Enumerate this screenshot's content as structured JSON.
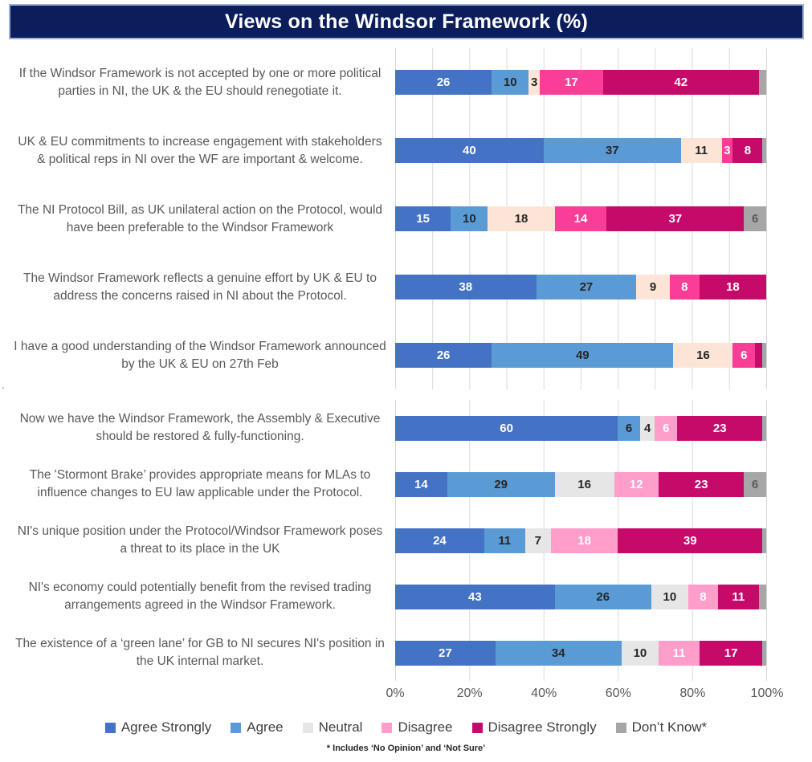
{
  "title": "Views on the Windsor Framework (%)",
  "footnote": "* Includes ‘No Opinion’ and ‘Not Sure’",
  "stray_mark": ".",
  "colors": {
    "title_bg": "#0b1d5b",
    "title_border": "#9fb1d9",
    "gridline": "#d9d9d9",
    "axis_text": "#595959",
    "category_text": "#595959",
    "legend_text": "#404040"
  },
  "chart_data": {
    "type": "bar",
    "orientation": "horizontal_stacked",
    "title": "Views on the Windsor Framework (%)",
    "xlim": [
      0,
      100
    ],
    "x_tick_labels": [
      "0%",
      "20%",
      "40%",
      "60%",
      "80%",
      "100%"
    ],
    "grid": true,
    "label_min_show": 3,
    "series_names": [
      "Agree Strongly",
      "Agree",
      "Neutral",
      "Disagree",
      "Disagree Strongly",
      "Don’t Know*"
    ],
    "charts": [
      {
        "name": "upper",
        "gridline_step_pct": 10,
        "colors": [
          "#4472c4",
          "#5b9bd5",
          "#fce4d6",
          "#fa3d96",
          "#c60a6a",
          "#a6a6a6"
        ],
        "text_colors": [
          "#ffffff",
          "#262626",
          "#262626",
          "#ffffff",
          "#ffffff",
          "#595959"
        ],
        "rows": [
          {
            "label": "If the Windsor Framework is not accepted by one or more political parties in NI, the UK & the EU should renegotiate it.",
            "values": [
              26,
              10,
              3,
              17,
              42,
              2
            ]
          },
          {
            "label": "UK & EU commitments to increase engagement with stakeholders & political reps in NI over the WF are important & welcome.",
            "values": [
              40,
              37,
              11,
              3,
              8,
              1
            ]
          },
          {
            "label": "The NI Protocol Bill, as UK unilateral action on the Protocol, would have been preferable to the Windsor Framework",
            "values": [
              15,
              10,
              18,
              14,
              37,
              6
            ]
          },
          {
            "label": "The Windsor Framework reflects a genuine effort by UK & EU to address the concerns raised in NI about the Protocol.",
            "values": [
              38,
              27,
              9,
              8,
              18,
              0
            ]
          },
          {
            "label": "I have a good understanding of the Windsor Framework announced by the UK & EU on 27th Feb",
            "values": [
              26,
              49,
              16,
              6,
              2,
              1
            ]
          }
        ]
      },
      {
        "name": "lower",
        "gridline_step_pct": 20,
        "colors": [
          "#4472c4",
          "#5b9bd5",
          "#e7e6e6",
          "#ff9dcb",
          "#c60a6a",
          "#a6a6a6"
        ],
        "text_colors": [
          "#ffffff",
          "#262626",
          "#262626",
          "#ffffff",
          "#ffffff",
          "#595959"
        ],
        "rows": [
          {
            "label": "Now we have the Windsor Framework, the Assembly & Executive should be restored & fully-functioning.",
            "values": [
              60,
              6,
              4,
              6,
              23,
              1
            ]
          },
          {
            "label": "The 'Stormont Brake’ provides appropriate means for MLAs to influence changes to EU law applicable under the Protocol.",
            "values": [
              14,
              29,
              16,
              12,
              23,
              6
            ]
          },
          {
            "label": "NI's unique position under the Protocol/Windsor Framework poses a threat to its place in the UK",
            "values": [
              24,
              11,
              7,
              18,
              39,
              1
            ]
          },
          {
            "label": "NI's economy could potentially benefit from the revised trading arrangements agreed in the Windsor Framework.",
            "values": [
              43,
              26,
              10,
              8,
              11,
              2
            ]
          },
          {
            "label": "The existence of a ‘green lane’ for GB to NI secures NI's position in the UK internal market.",
            "values": [
              27,
              34,
              10,
              11,
              17,
              1
            ]
          }
        ]
      }
    ]
  },
  "legend": {
    "items": [
      {
        "label": "Agree Strongly",
        "color": "#4472c4"
      },
      {
        "label": "Agree",
        "color": "#5b9bd5"
      },
      {
        "label": "Neutral",
        "color": "#e7e6e6"
      },
      {
        "label": "Disagree",
        "color": "#ff9dcb"
      },
      {
        "label": "Disagree Strongly",
        "color": "#c60a6a"
      },
      {
        "label": "Don’t Know*",
        "color": "#a6a6a6"
      }
    ]
  }
}
